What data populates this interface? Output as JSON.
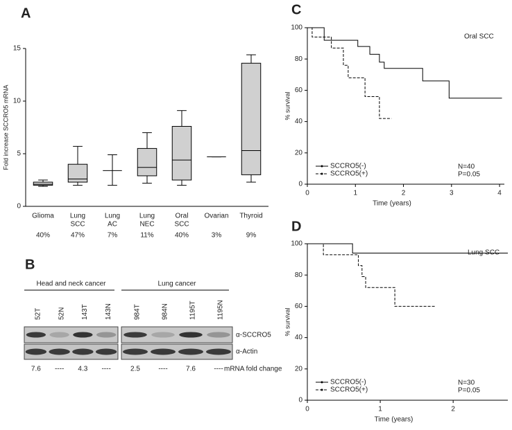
{
  "chart_data": [
    {
      "type": "box",
      "panel": "A",
      "ylabel": "Fold increase SCCRO5 mRNA",
      "categories": [
        [
          "Glioma"
        ],
        [
          "Lung",
          "SCC"
        ],
        [
          "Lung",
          "AC"
        ],
        [
          "Lung",
          "NEC"
        ],
        [
          "Oral",
          "SCC"
        ],
        [
          "Ovarian"
        ],
        [
          "Thyroid"
        ]
      ],
      "sample_labels": [
        "40%",
        "47%",
        "7%",
        "11%",
        "40%",
        "3%",
        "9%"
      ],
      "low": [
        1.9,
        2.0,
        2.0,
        2.2,
        2.0,
        4.7,
        2.3
      ],
      "q1": [
        2.0,
        2.3,
        3.4,
        2.9,
        2.5,
        4.7,
        3.0
      ],
      "median": [
        2.1,
        2.6,
        3.4,
        3.7,
        4.4,
        4.7,
        5.3
      ],
      "q3": [
        2.3,
        4.0,
        3.4,
        5.5,
        7.6,
        4.7,
        13.6
      ],
      "high": [
        2.5,
        5.7,
        4.9,
        7.0,
        9.1,
        4.7,
        14.4
      ],
      "color": "#d0d0d0",
      "ylim": [
        0,
        15
      ],
      "yticks": [
        0,
        5,
        10,
        15
      ]
    },
    {
      "type": "survival",
      "panel": "C",
      "xlabel": "Time (years)",
      "ylabel": "% survival",
      "annotations": [
        "Oral SCC",
        "N=40",
        "P=0.05"
      ],
      "xlim": [
        0,
        4.1
      ],
      "xticks": [
        0,
        1,
        2,
        3,
        4
      ],
      "ylim": [
        0,
        100
      ],
      "yticks": [
        0,
        20,
        40,
        60,
        80,
        100
      ],
      "series": [
        {
          "name": "SCCRO5(-)",
          "color": "#000000",
          "style": "solid",
          "x": [
            0,
            0.35,
            0.35,
            1.05,
            1.05,
            1.3,
            1.3,
            1.5,
            1.5,
            1.6,
            1.6,
            2.4,
            2.4,
            2.95,
            2.95,
            4.05
          ],
          "values": [
            100,
            100,
            92,
            92,
            88,
            88,
            83,
            83,
            78,
            78,
            74,
            74,
            66,
            66,
            55,
            55
          ]
        },
        {
          "name": "SCCRO5(+)",
          "color": "#000000",
          "style": "dashed",
          "x": [
            0,
            0.1,
            0.1,
            0.5,
            0.5,
            0.75,
            0.75,
            0.85,
            0.85,
            1.2,
            1.2,
            1.5,
            1.5,
            1.75
          ],
          "values": [
            100,
            100,
            94,
            94,
            87,
            87,
            76,
            76,
            68,
            68,
            56,
            56,
            42,
            42
          ]
        }
      ]
    },
    {
      "type": "survival",
      "panel": "D",
      "xlabel": "Time (years)",
      "ylabel": "% survival",
      "annotations": [
        "Lung SCC",
        "N=30",
        "P=0.05"
      ],
      "xlim": [
        0,
        2.75
      ],
      "xticks": [
        0,
        1,
        2
      ],
      "ylim": [
        0,
        100
      ],
      "yticks": [
        0,
        20,
        40,
        60,
        80,
        100
      ],
      "series": [
        {
          "name": "SCCRO5(-)",
          "color": "#000000",
          "style": "solid",
          "x": [
            0,
            0.62,
            0.62,
            2.75
          ],
          "values": [
            100,
            100,
            94,
            94
          ]
        },
        {
          "name": "SCCRO5(+)",
          "color": "#000000",
          "style": "dashed",
          "x": [
            0,
            0.22,
            0.22,
            0.7,
            0.7,
            0.75,
            0.75,
            0.8,
            0.8,
            1.2,
            1.2,
            1.75
          ],
          "values": [
            100,
            100,
            93,
            93,
            86,
            86,
            79,
            79,
            72,
            72,
            60,
            60
          ]
        }
      ]
    }
  ],
  "blot": {
    "panel": "B",
    "groups": [
      {
        "title": "Head and neck cancer",
        "lanes": [
          "52T",
          "52N",
          "143T",
          "143N"
        ],
        "fold_change": [
          "7.6",
          "----",
          "4.3",
          "----"
        ]
      },
      {
        "title": "Lung cancer",
        "lanes": [
          "984T",
          "984N",
          "1195T",
          "1195N"
        ],
        "fold_change": [
          "2.5",
          "----",
          "7.6",
          "----"
        ]
      }
    ],
    "bands": [
      "α-SCCRO5",
      "α-Actin"
    ],
    "fold_change_label": "mRNA fold change"
  }
}
